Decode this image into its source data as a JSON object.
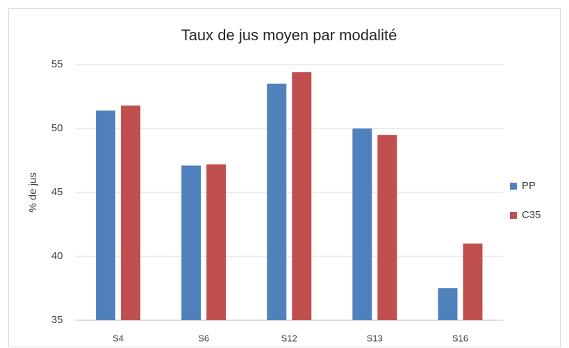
{
  "chart_data": {
    "type": "bar",
    "title": "Taux de jus moyen par modalité",
    "y_label": "% de jus",
    "categories": [
      "S4",
      "S6",
      "S12",
      "S13",
      "S16"
    ],
    "series": [
      {
        "name": "PP",
        "color": "#4f81bd",
        "values": [
          51.4,
          47.1,
          53.5,
          50.0,
          37.5
        ]
      },
      {
        "name": "C35",
        "color": "#c0504d",
        "values": [
          51.8,
          47.2,
          54.4,
          49.5,
          41.0
        ]
      }
    ],
    "ylim": [
      35,
      55
    ],
    "yticks": [
      35,
      40,
      45,
      50,
      55
    ],
    "grid": true,
    "legend": "right"
  }
}
